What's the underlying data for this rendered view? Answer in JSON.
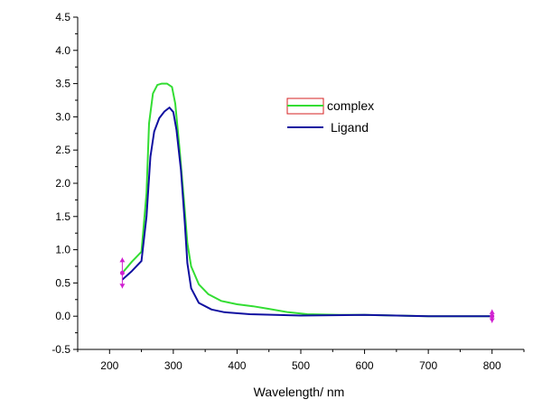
{
  "chart_data": {
    "type": "line",
    "title": "",
    "xlabel": "Wavelength/ nm",
    "ylabel": "",
    "xlim": [
      150,
      850
    ],
    "ylim": [
      -0.5,
      4.5
    ],
    "xticks": [
      200,
      300,
      400,
      500,
      600,
      700,
      800
    ],
    "yticks": [
      -0.5,
      0.0,
      0.5,
      1.0,
      1.5,
      2.0,
      2.5,
      3.0,
      3.5,
      4.0,
      4.5
    ],
    "grid": false,
    "legend_position": "upper-right",
    "series": [
      {
        "name": "complex",
        "color": "#33dd33",
        "legend_box_color": "#d62020",
        "points": [
          [
            220,
            0.65
          ],
          [
            235,
            0.82
          ],
          [
            250,
            0.97
          ],
          [
            258,
            1.85
          ],
          [
            262,
            2.9
          ],
          [
            268,
            3.35
          ],
          [
            275,
            3.48
          ],
          [
            282,
            3.5
          ],
          [
            290,
            3.5
          ],
          [
            298,
            3.45
          ],
          [
            303,
            3.2
          ],
          [
            310,
            2.5
          ],
          [
            317,
            1.7
          ],
          [
            322,
            1.1
          ],
          [
            328,
            0.75
          ],
          [
            340,
            0.48
          ],
          [
            355,
            0.33
          ],
          [
            375,
            0.23
          ],
          [
            400,
            0.18
          ],
          [
            425,
            0.15
          ],
          [
            450,
            0.11
          ],
          [
            480,
            0.06
          ],
          [
            510,
            0.03
          ],
          [
            560,
            0.02
          ],
          [
            600,
            0.02
          ],
          [
            650,
            0.01
          ],
          [
            700,
            0.0
          ],
          [
            800,
            0.0
          ]
        ]
      },
      {
        "name": "Ligand",
        "color": "#1010a0",
        "points": [
          [
            220,
            0.55
          ],
          [
            235,
            0.68
          ],
          [
            250,
            0.83
          ],
          [
            258,
            1.5
          ],
          [
            264,
            2.4
          ],
          [
            270,
            2.78
          ],
          [
            278,
            2.98
          ],
          [
            286,
            3.08
          ],
          [
            294,
            3.14
          ],
          [
            300,
            3.07
          ],
          [
            305,
            2.8
          ],
          [
            312,
            2.2
          ],
          [
            318,
            1.4
          ],
          [
            322,
            0.8
          ],
          [
            328,
            0.42
          ],
          [
            340,
            0.2
          ],
          [
            360,
            0.1
          ],
          [
            380,
            0.06
          ],
          [
            420,
            0.03
          ],
          [
            500,
            0.01
          ],
          [
            600,
            0.02
          ],
          [
            700,
            0.0
          ],
          [
            800,
            0.0
          ]
        ]
      }
    ],
    "error_markers": [
      {
        "x": 220,
        "y_low": 0.42,
        "y_high": 0.88,
        "color": "#d020d0"
      },
      {
        "x": 800,
        "y_low": -0.1,
        "y_high": 0.1,
        "color": "#d020d0"
      }
    ]
  }
}
